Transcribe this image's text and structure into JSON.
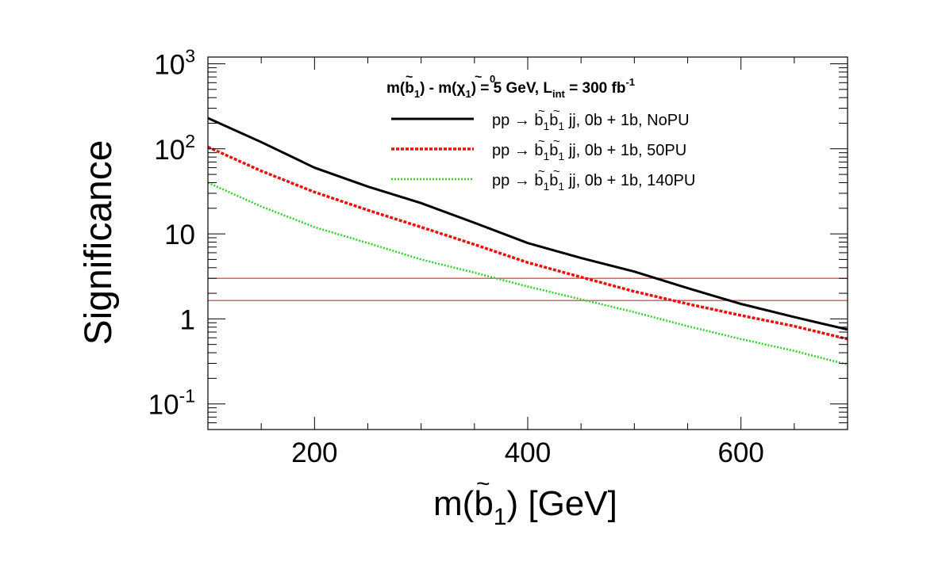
{
  "chart_data": {
    "type": "line",
    "yscale": "log",
    "xlim": [
      100,
      700
    ],
    "ylim": [
      0.05,
      1200
    ],
    "x_ticks": [
      {
        "value": 200,
        "label": "200"
      },
      {
        "value": 400,
        "label": "400"
      },
      {
        "value": 600,
        "label": "600"
      }
    ],
    "y_ticks": [
      {
        "value": 0.1,
        "base": "10",
        "exp": "-1"
      },
      {
        "value": 1,
        "base": "1",
        "exp": ""
      },
      {
        "value": 10,
        "base": "10",
        "exp": ""
      },
      {
        "value": 100,
        "base": "10",
        "exp": "2"
      },
      {
        "value": 1000,
        "base": "10",
        "exp": "3"
      }
    ],
    "xlabel": {
      "prefix": "m(",
      "tilde": "~",
      "b": "b",
      "sub": "1",
      "suffix": ") [GeV]"
    },
    "ylabel": "Significance",
    "legend": {
      "position": "top-right",
      "header": {
        "p1": "m(",
        "b": "b",
        "tilde": "~",
        "s1": "1",
        "p2": ") - m(",
        "chi": "χ",
        "chisub": "1",
        "chisup": "0",
        "p3": ") = 5 GeV, L",
        "int": "int",
        "p4": " = 300 fb",
        "lumisup": "-1"
      }
    },
    "reference_lines": [
      {
        "y": 3.0,
        "color": "#e8261e"
      },
      {
        "y": 1.645,
        "color": "#e8261e"
      }
    ],
    "series": [
      {
        "name": "NoPU",
        "color": "#000000",
        "dash": "solid",
        "label": {
          "pre": "pp",
          "arrow": "→",
          "b": "b",
          "sub": "1",
          "post1": " jj, 0b + 1b, ",
          "tag": "NoPU"
        },
        "x": [
          100,
          150,
          200,
          250,
          300,
          350,
          400,
          450,
          500,
          550,
          600,
          650,
          700
        ],
        "y": [
          230,
          120,
          60,
          36,
          23,
          13.5,
          7.8,
          5.2,
          3.6,
          2.3,
          1.5,
          1.05,
          0.75
        ]
      },
      {
        "name": "50PU",
        "color": "#e8120d",
        "dash": "dashed",
        "label": {
          "pre": "pp",
          "arrow": "→",
          "b": "b",
          "sub": "1",
          "post1": " jj, 0b + 1b, ",
          "tag": "50PU"
        },
        "x": [
          100,
          150,
          200,
          250,
          300,
          350,
          400,
          450,
          500,
          550,
          600,
          650,
          700
        ],
        "y": [
          105,
          55,
          31,
          19,
          12,
          7.5,
          4.6,
          3.1,
          2.1,
          1.5,
          1.1,
          0.82,
          0.58
        ]
      },
      {
        "name": "140PU",
        "color": "#2fcf2a",
        "dash": "dotted",
        "label": {
          "pre": "pp",
          "arrow": "→",
          "b": "b",
          "sub": "1",
          "post1": " jj, 0b + 1b, ",
          "tag": "140PU"
        },
        "x": [
          100,
          150,
          200,
          250,
          300,
          350,
          400,
          450,
          500,
          550,
          600,
          650,
          700
        ],
        "y": [
          40,
          21,
          12,
          7.8,
          5,
          3.5,
          2.4,
          1.7,
          1.2,
          0.82,
          0.58,
          0.42,
          0.29
        ]
      }
    ]
  }
}
